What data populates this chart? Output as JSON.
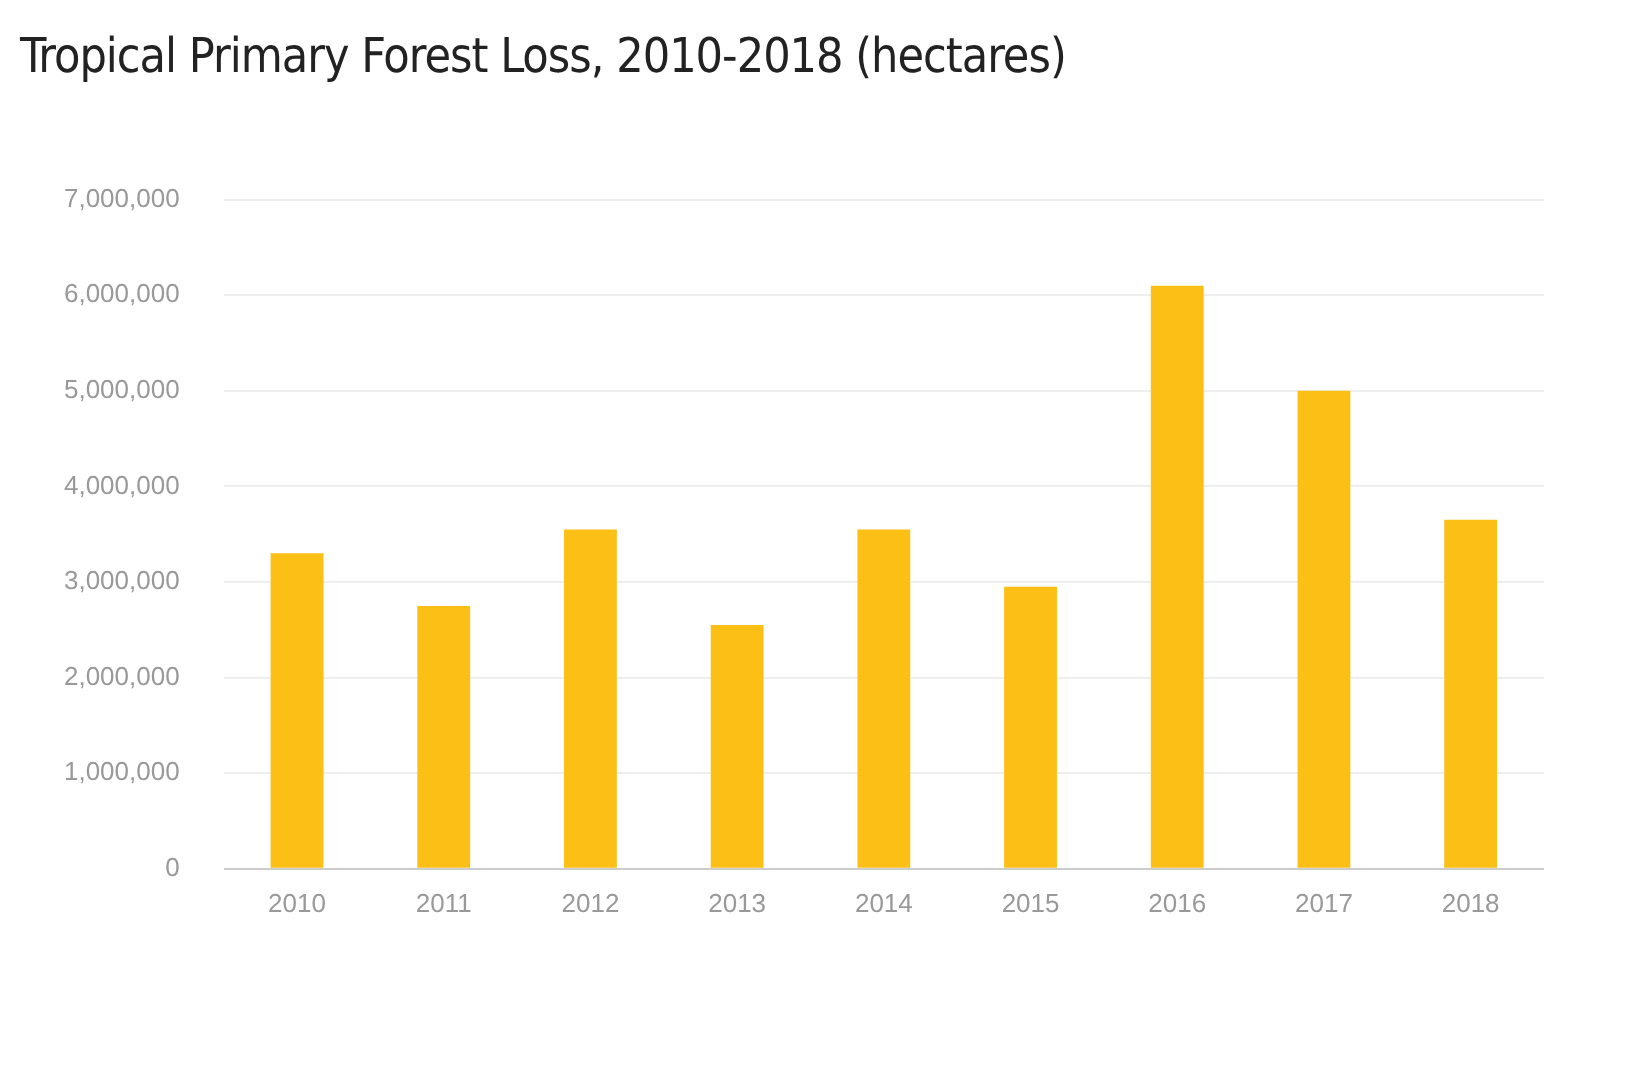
{
  "chart_data": {
    "type": "bar",
    "title": "Tropical Primary Forest Loss, 2010-2018 (hectares)",
    "categories": [
      "2010",
      "2011",
      "2012",
      "2013",
      "2014",
      "2015",
      "2016",
      "2017",
      "2018"
    ],
    "values": [
      3300000,
      2750000,
      3550000,
      2550000,
      3550000,
      2950000,
      6100000,
      5000000,
      3650000
    ],
    "color": "#fbbf16",
    "ylim": [
      0,
      7000000
    ],
    "yticks": [
      {
        "value": 0,
        "label": "0"
      },
      {
        "value": 1000000,
        "label": "1,000,000"
      },
      {
        "value": 2000000,
        "label": "2,000,000"
      },
      {
        "value": 3000000,
        "label": "3,000,000"
      },
      {
        "value": 4000000,
        "label": "4,000,000"
      },
      {
        "value": 5000000,
        "label": "5,000,000"
      },
      {
        "value": 6000000,
        "label": "6,000,000"
      },
      {
        "value": 7000000,
        "label": "7,000,000"
      }
    ],
    "grid": "y",
    "legend": false
  }
}
